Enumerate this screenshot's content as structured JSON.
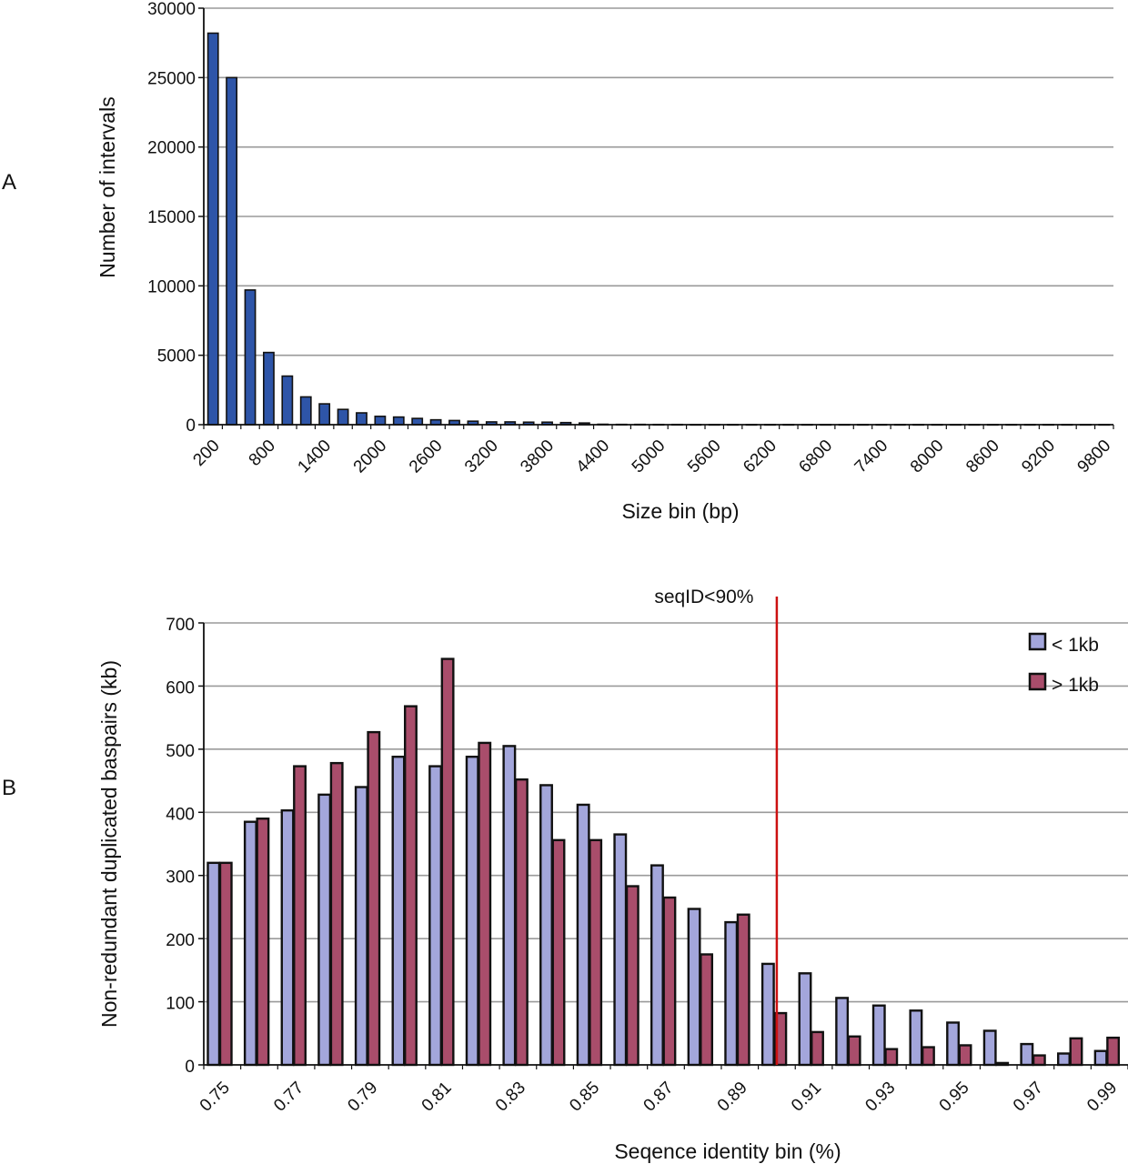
{
  "panel_labels": [
    "A",
    "B"
  ],
  "chart_data": [
    {
      "type": "bar",
      "panel": "A",
      "title": "",
      "xlabel": "Size bin (bp)",
      "ylabel": "Number of intervals",
      "ylim": [
        0,
        30000
      ],
      "yticks": [
        0,
        5000,
        10000,
        15000,
        20000,
        25000,
        30000
      ],
      "x_tick_labels": [
        "200",
        "800",
        "1400",
        "2000",
        "2600",
        "3200",
        "3800",
        "4400",
        "5000",
        "5600",
        "6200",
        "6800",
        "7400",
        "8000",
        "8600",
        "9200",
        "9800"
      ],
      "grid": true,
      "bar_color": "#2e55a8",
      "categories": [
        200,
        400,
        600,
        800,
        1000,
        1200,
        1400,
        1600,
        1800,
        2000,
        2200,
        2400,
        2600,
        2800,
        3000,
        3200,
        3400,
        3600,
        3800,
        4000,
        4200,
        4400,
        4600,
        4800,
        5000,
        5200,
        5400,
        5600,
        5800,
        6000,
        6200,
        6400,
        6600,
        6800,
        7000,
        7200,
        7400,
        7600,
        7800,
        8000,
        8200,
        8400,
        8600,
        8800,
        9000,
        9200,
        9400,
        9600,
        9800
      ],
      "values": [
        28200,
        25000,
        9700,
        5200,
        3500,
        2000,
        1500,
        1100,
        850,
        600,
        550,
        450,
        350,
        300,
        250,
        200,
        200,
        180,
        180,
        150,
        120,
        30,
        20,
        20,
        15,
        15,
        10,
        10,
        10,
        10,
        10,
        10,
        10,
        10,
        10,
        10,
        10,
        10,
        10,
        10,
        10,
        10,
        10,
        10,
        10,
        10,
        10,
        10,
        10
      ]
    },
    {
      "type": "bar",
      "panel": "B",
      "title": "",
      "xlabel": "Seqence identity bin (%)",
      "ylabel": "Non-redundant duplicated baspairs (kb)",
      "ylim": [
        0,
        700
      ],
      "yticks": [
        0,
        100,
        200,
        300,
        400,
        500,
        600,
        700
      ],
      "x_tick_labels": [
        "0.75",
        "0.77",
        "0.79",
        "0.81",
        "0.83",
        "0.85",
        "0.87",
        "0.89",
        "0.91",
        "0.93",
        "0.95",
        "0.97",
        "0.99"
      ],
      "grid": true,
      "legend_position": "top-right",
      "annotation": {
        "text": "seqID<90%",
        "x": 0.9,
        "color": "#cc1111"
      },
      "categories": [
        0.75,
        0.76,
        0.77,
        0.78,
        0.79,
        0.8,
        0.81,
        0.82,
        0.83,
        0.84,
        0.85,
        0.86,
        0.87,
        0.88,
        0.89,
        0.9,
        0.91,
        0.92,
        0.93,
        0.94,
        0.95,
        0.96,
        0.97,
        0.98,
        0.99
      ],
      "series": [
        {
          "name": "< 1kb",
          "color": "#a3a6db",
          "values": [
            320,
            385,
            403,
            428,
            440,
            488,
            473,
            488,
            505,
            443,
            412,
            365,
            316,
            247,
            226,
            160,
            145,
            106,
            94,
            86,
            67,
            54,
            33,
            18,
            22
          ]
        },
        {
          "name": "> 1kb",
          "color": "#a94d6b",
          "values": [
            320,
            390,
            473,
            478,
            527,
            568,
            643,
            510,
            452,
            356,
            356,
            283,
            265,
            175,
            238,
            82,
            52,
            45,
            25,
            28,
            31,
            3,
            15,
            42,
            43
          ]
        }
      ]
    }
  ]
}
